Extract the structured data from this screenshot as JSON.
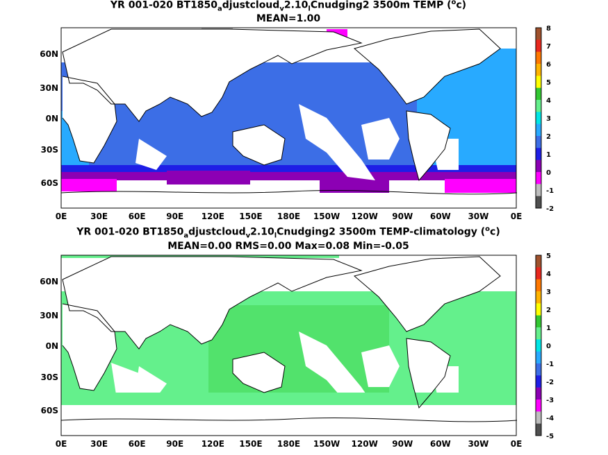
{
  "panels": [
    {
      "title_main": "YR 001-020 BT1850",
      "title_sub1": "a",
      "title_mid1": "djustcloud",
      "title_sub2": "v",
      "title_mid2": "2.10",
      "title_sub3": "l",
      "title_tail": "Cnudging2 3500m TEMP (",
      "title_sup": "o",
      "title_end": "c)",
      "stats": "MEAN=1.00",
      "colorbar_labels": [
        "8",
        "7",
        "6",
        "5",
        "4",
        "3",
        "2",
        "1",
        "0",
        "-1",
        "-2"
      ],
      "colorbar_colors": [
        "#a0522d",
        "#e8281e",
        "#ff7800",
        "#ffb400",
        "#ffff00",
        "#32c832",
        "#64f08c",
        "#00e6e6",
        "#28aaff",
        "#3c6ee6",
        "#1e1ee6",
        "#8c00b4",
        "#ff00ff",
        "#bebebe",
        "#505050"
      ]
    },
    {
      "title_main": "YR 001-020 BT1850",
      "title_sub1": "a",
      "title_mid1": "djustcloud",
      "title_sub2": "v",
      "title_mid2": "2.10",
      "title_sub3": "l",
      "title_tail": "Cnudging2 3500m TEMP-climatology (",
      "title_sup": "o",
      "title_end": "c)",
      "stats": "MEAN=0.00   RMS=0.00   Max=0.08   Min=-0.05",
      "colorbar_labels": [
        "5",
        "4",
        "3",
        "2",
        "1",
        "0",
        "-1",
        "-2",
        "-3",
        "-4",
        "-5"
      ],
      "colorbar_colors": [
        "#a0522d",
        "#e8281e",
        "#ff7800",
        "#ffb400",
        "#ffff00",
        "#32c832",
        "#64f08c",
        "#00e6e6",
        "#28aaff",
        "#3c6ee6",
        "#1e1ee6",
        "#8c00b4",
        "#ff00ff",
        "#bebebe",
        "#505050"
      ]
    }
  ],
  "x_ticks": [
    "0E",
    "30E",
    "60E",
    "90E",
    "120E",
    "150E",
    "180E",
    "150W",
    "120W",
    "90W",
    "60W",
    "30W",
    "0E"
  ],
  "y_ticks": [
    "60N",
    "30N",
    "0N",
    "30S",
    "60S"
  ],
  "colors": {
    "ocean_top_main": "#3c6ee6",
    "ocean_top_atlantic": "#28aaff",
    "ocean_top_south": "#1e1ee6",
    "ocean_top_cold": "#8c00b4",
    "ocean_top_coldest": "#ff00ff",
    "ocean_bottom": "#64f08c",
    "ocean_bottom_alt": "#32c832"
  }
}
